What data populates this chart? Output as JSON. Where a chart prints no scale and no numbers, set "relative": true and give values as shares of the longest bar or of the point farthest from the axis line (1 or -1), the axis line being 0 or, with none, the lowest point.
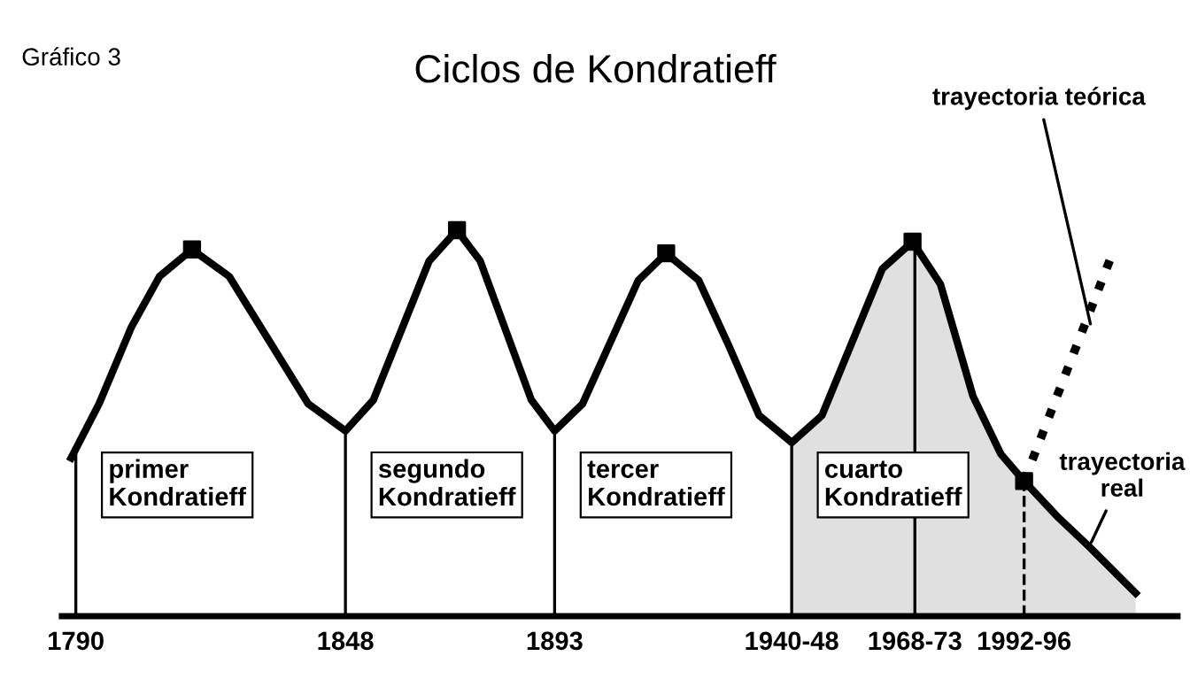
{
  "chart_data": {
    "type": "line",
    "title": "Ciclos de Kondratieff",
    "relative": true,
    "grid": false,
    "tick_labels": "x",
    "xlim": [
      1787,
      2027
    ],
    "xticks": [
      1790,
      1848,
      1893,
      {
        "value": 1944,
        "label": "1940-48"
      },
      {
        "value": 1970.5,
        "label": "1968-73"
      },
      {
        "value": 1994,
        "label": "1992-96"
      }
    ],
    "series": [
      {
        "type": "area",
        "color": "#e0e0e0",
        "x": [
          1944,
          1950.5,
          1957,
          1963.5,
          1970,
          1976,
          1983,
          1989,
          1994,
          2001,
          2008,
          2013,
          2018
        ],
        "values": [
          0.45,
          0.52,
          0.71,
          0.9,
          0.97,
          0.86,
          0.57,
          0.42,
          0.35,
          0.26,
          0.18,
          0.12,
          0.06
        ]
      },
      {
        "name": "trayectoria real",
        "color": "#000000",
        "line_style": "solid",
        "marker": "none",
        "x": [
          1789,
          1795,
          1802,
          1808,
          1815,
          1823,
          1831.5,
          1840,
          1848,
          1854,
          1860,
          1866,
          1872,
          1877,
          1882.5,
          1888,
          1893,
          1899,
          1905,
          1911,
          1917,
          1924,
          1930.5,
          1937,
          1944,
          1950.5,
          1957,
          1963.5,
          1970,
          1976,
          1983,
          1989,
          1994,
          2001,
          2008,
          2013,
          2018
        ],
        "values": [
          0.41,
          0.55,
          0.75,
          0.88,
          0.95,
          0.88,
          0.715,
          0.55,
          0.48,
          0.56,
          0.74,
          0.92,
          1.0,
          0.92,
          0.74,
          0.56,
          0.48,
          0.55,
          0.71,
          0.87,
          0.94,
          0.87,
          0.7,
          0.52,
          0.45,
          0.52,
          0.71,
          0.9,
          0.97,
          0.86,
          0.57,
          0.42,
          0.35,
          0.26,
          0.18,
          0.12,
          0.06
        ]
      },
      {
        "name": "trayectoria teórica",
        "color": "#000000",
        "line_style": "dotted",
        "marker": "none",
        "x": [
          1994,
          2013
        ],
        "values": [
          0.35,
          0.94
        ]
      },
      {
        "type": "scatter",
        "color": "#000000",
        "marker": "square",
        "x": [
          1815,
          1872,
          1917,
          1970,
          1994
        ],
        "values": [
          0.95,
          1.0,
          0.94,
          0.97,
          0.35
        ]
      }
    ],
    "ref_lines": [
      {
        "axis": "x",
        "value": 1790,
        "line_style": "solid"
      },
      {
        "axis": "x",
        "value": 1848,
        "line_style": "solid"
      },
      {
        "axis": "x",
        "value": 1893,
        "line_style": "solid"
      },
      {
        "axis": "x",
        "value": 1944,
        "line_style": "solid"
      },
      {
        "axis": "x",
        "value": 1970.5,
        "line_style": "solid"
      },
      {
        "axis": "x",
        "value": 1994,
        "line_style": "dashed"
      }
    ],
    "legend": false,
    "annotations": [
      "Gráfico 3",
      "primer\nKondratieff",
      "segundo\nKondratieff",
      "tercer\nKondratieff",
      "cuarto\nKondratieff"
    ]
  }
}
